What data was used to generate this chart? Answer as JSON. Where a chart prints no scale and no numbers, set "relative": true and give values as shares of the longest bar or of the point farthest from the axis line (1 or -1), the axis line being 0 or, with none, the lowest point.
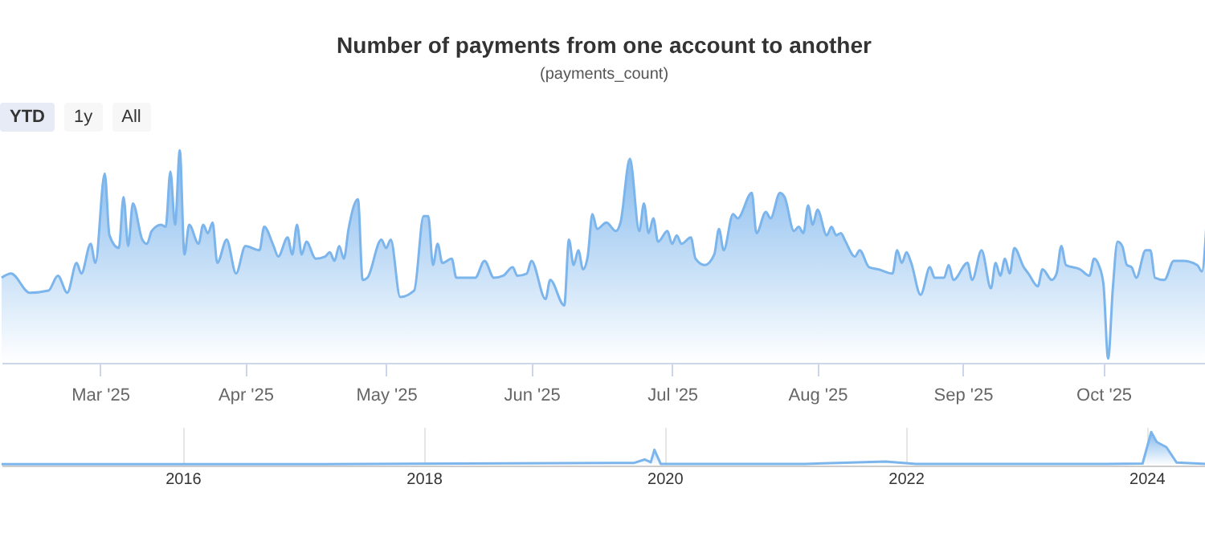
{
  "chart_data": [
    {
      "type": "area",
      "title": "Number of payments from one account to another",
      "subtitle": "(payments_count)",
      "annotations": [
        "YTD",
        "1y",
        "All"
      ],
      "relative": true,
      "xlim": [
        "2025-02-08",
        "2025-10-23"
      ],
      "xticks": [
        {
          "value": "2025-03-01",
          "label": "Mar '25"
        },
        {
          "value": "2025-04-01",
          "label": "Apr '25"
        },
        {
          "value": "2025-05-01",
          "label": "May '25"
        },
        {
          "value": "2025-06-01",
          "label": "Jun '25"
        },
        {
          "value": "2025-07-01",
          "label": "Jul '25"
        },
        {
          "value": "2025-08-01",
          "label": "Aug '25"
        },
        {
          "value": "2025-09-01",
          "label": "Sep '25"
        },
        {
          "value": "2025-10-01",
          "label": "Oct '25"
        }
      ],
      "x": [
        "2025-02-08",
        "2025-02-10",
        "2025-02-14",
        "2025-02-18",
        "2025-02-20",
        "2025-02-22",
        "2025-02-24",
        "2025-02-25",
        "2025-02-27",
        "2025-02-28",
        "2025-03-02",
        "2025-03-03",
        "2025-03-05",
        "2025-03-06",
        "2025-03-07",
        "2025-03-08",
        "2025-03-10",
        "2025-03-11",
        "2025-03-12",
        "2025-03-14",
        "2025-03-15",
        "2025-03-16",
        "2025-03-17",
        "2025-03-18",
        "2025-03-19",
        "2025-03-20",
        "2025-03-22",
        "2025-03-23",
        "2025-03-24",
        "2025-03-25",
        "2025-03-26",
        "2025-03-28",
        "2025-03-30",
        "2025-04-01",
        "2025-04-04",
        "2025-04-05",
        "2025-04-07",
        "2025-04-08",
        "2025-04-10",
        "2025-04-11",
        "2025-04-12",
        "2025-04-13",
        "2025-04-14",
        "2025-04-16",
        "2025-04-18",
        "2025-04-19",
        "2025-04-20",
        "2025-04-21",
        "2025-04-22",
        "2025-04-23",
        "2025-04-25",
        "2025-04-26",
        "2025-04-27",
        "2025-04-30",
        "2025-05-01",
        "2025-05-02",
        "2025-05-04",
        "2025-05-07",
        "2025-05-09",
        "2025-05-10",
        "2025-05-11",
        "2025-05-12",
        "2025-05-13",
        "2025-05-15",
        "2025-05-16",
        "2025-05-19",
        "2025-05-20",
        "2025-05-22",
        "2025-05-24",
        "2025-05-26",
        "2025-05-28",
        "2025-05-29",
        "2025-05-31",
        "2025-06-01",
        "2025-06-04",
        "2025-06-05",
        "2025-06-08",
        "2025-06-09",
        "2025-06-10",
        "2025-06-11",
        "2025-06-12",
        "2025-06-13",
        "2025-06-14",
        "2025-06-15",
        "2025-06-17",
        "2025-06-19",
        "2025-06-20",
        "2025-06-22",
        "2025-06-24",
        "2025-06-25",
        "2025-06-26",
        "2025-06-27",
        "2025-06-28",
        "2025-06-30",
        "2025-07-01",
        "2025-07-02",
        "2025-07-03",
        "2025-07-05",
        "2025-07-06",
        "2025-07-08",
        "2025-07-10",
        "2025-07-11",
        "2025-07-12",
        "2025-07-14",
        "2025-07-15",
        "2025-07-18",
        "2025-07-19",
        "2025-07-21",
        "2025-07-22",
        "2025-07-24",
        "2025-07-25",
        "2025-07-27",
        "2025-07-28",
        "2025-07-29",
        "2025-07-30",
        "2025-07-31",
        "2025-08-01",
        "2025-08-03",
        "2025-08-04",
        "2025-08-05",
        "2025-08-06",
        "2025-08-07",
        "2025-08-09",
        "2025-08-10",
        "2025-08-12",
        "2025-08-14",
        "2025-08-17",
        "2025-08-18",
        "2025-08-19",
        "2025-08-20",
        "2025-08-21",
        "2025-08-23",
        "2025-08-25",
        "2025-08-26",
        "2025-08-28",
        "2025-08-29",
        "2025-08-30",
        "2025-09-02",
        "2025-09-03",
        "2025-09-05",
        "2025-09-07",
        "2025-09-08",
        "2025-09-09",
        "2025-09-10",
        "2025-09-11",
        "2025-09-12",
        "2025-09-14",
        "2025-09-15",
        "2025-09-17",
        "2025-09-18",
        "2025-09-20",
        "2025-09-21",
        "2025-09-22",
        "2025-09-23",
        "2025-09-26",
        "2025-09-28",
        "2025-09-29",
        "2025-09-30",
        "2025-10-01",
        "2025-10-02",
        "2025-10-03",
        "2025-10-04",
        "2025-10-05",
        "2025-10-06",
        "2025-10-07",
        "2025-10-08",
        "2025-10-10",
        "2025-10-11",
        "2025-10-12",
        "2025-10-14",
        "2025-10-16",
        "2025-10-18",
        "2025-10-21",
        "2025-10-22",
        "2025-10-23"
      ],
      "series": [
        {
          "color": "#7cb5ec",
          "values": [
            0.4,
            0.42,
            0.33,
            0.34,
            0.41,
            0.33,
            0.47,
            0.42,
            0.56,
            0.47,
            0.89,
            0.6,
            0.54,
            0.78,
            0.55,
            0.75,
            0.58,
            0.56,
            0.62,
            0.65,
            0.64,
            0.9,
            0.65,
            1.0,
            0.51,
            0.65,
            0.56,
            0.65,
            0.61,
            0.66,
            0.47,
            0.58,
            0.42,
            0.55,
            0.53,
            0.64,
            0.55,
            0.5,
            0.59,
            0.51,
            0.65,
            0.51,
            0.57,
            0.49,
            0.5,
            0.52,
            0.48,
            0.55,
            0.49,
            0.63,
            0.77,
            0.39,
            0.4,
            0.58,
            0.54,
            0.58,
            0.31,
            0.34,
            0.69,
            0.69,
            0.46,
            0.56,
            0.47,
            0.49,
            0.4,
            0.4,
            0.4,
            0.48,
            0.4,
            0.41,
            0.45,
            0.41,
            0.42,
            0.48,
            0.3,
            0.39,
            0.27,
            0.58,
            0.46,
            0.53,
            0.44,
            0.5,
            0.7,
            0.63,
            0.66,
            0.62,
            0.66,
            0.96,
            0.62,
            0.75,
            0.61,
            0.68,
            0.57,
            0.62,
            0.56,
            0.6,
            0.56,
            0.59,
            0.49,
            0.46,
            0.51,
            0.63,
            0.53,
            0.7,
            0.68,
            0.8,
            0.61,
            0.71,
            0.68,
            0.8,
            0.78,
            0.62,
            0.64,
            0.61,
            0.74,
            0.65,
            0.72,
            0.6,
            0.64,
            0.6,
            0.61,
            0.57,
            0.5,
            0.53,
            0.45,
            0.44,
            0.42,
            0.53,
            0.47,
            0.52,
            0.47,
            0.32,
            0.45,
            0.4,
            0.4,
            0.46,
            0.39,
            0.47,
            0.39,
            0.53,
            0.35,
            0.47,
            0.41,
            0.49,
            0.42,
            0.54,
            0.45,
            0.42,
            0.36,
            0.44,
            0.39,
            0.42,
            0.55,
            0.46,
            0.44,
            0.41,
            0.49,
            0.46,
            0.37,
            0.02,
            0.35,
            0.57,
            0.55,
            0.46,
            0.45,
            0.4,
            0.53,
            0.53,
            0.4,
            0.39,
            0.48,
            0.48,
            0.46,
            0.43,
            0.66
          ]
        }
      ]
    },
    {
      "type": "area",
      "relative": true,
      "grid": "x",
      "xlim": [
        "2014-07",
        "2024-07"
      ],
      "xticks": [
        {
          "value": "2016-01-01",
          "label": "2016"
        },
        {
          "value": "2018-01-01",
          "label": "2018"
        },
        {
          "value": "2020-01-01",
          "label": "2020"
        },
        {
          "value": "2022-01-01",
          "label": "2022"
        },
        {
          "value": "2024-01-01",
          "label": "2024"
        }
      ],
      "x": [
        "2014-07",
        "2017-03",
        "2019-10",
        "2019-11",
        "2019-11-20",
        "2019-12",
        "2019-12-20",
        "2021-03",
        "2021-11",
        "2022-02",
        "2023-09",
        "2023-12-20",
        "2024-01-15",
        "2024-02",
        "2024-03",
        "2024-04",
        "2024-07"
      ],
      "series": [
        {
          "color": "#7cb5ec",
          "values": [
            0.04,
            0.04,
            0.08,
            0.18,
            0.1,
            0.47,
            0.05,
            0.05,
            0.12,
            0.05,
            0.05,
            0.06,
            1.0,
            0.7,
            0.55,
            0.09,
            0.05
          ]
        }
      ]
    }
  ]
}
